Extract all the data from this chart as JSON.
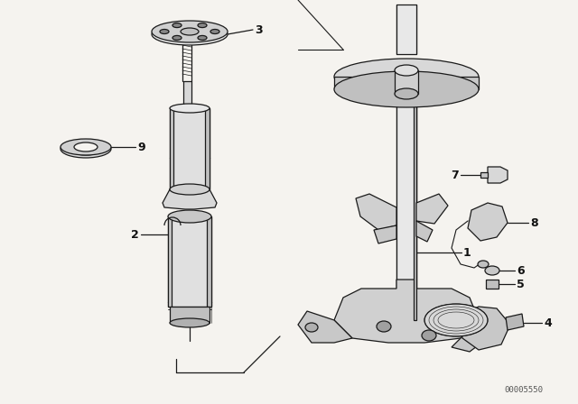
{
  "bg_color": "#f5f3ef",
  "fig_width": 6.4,
  "fig_height": 4.48,
  "dpi": 100,
  "watermark": "00005550",
  "line_color": "#1a1a1a",
  "text_color": "#111111",
  "label_fs": 9,
  "lw": 0.9
}
